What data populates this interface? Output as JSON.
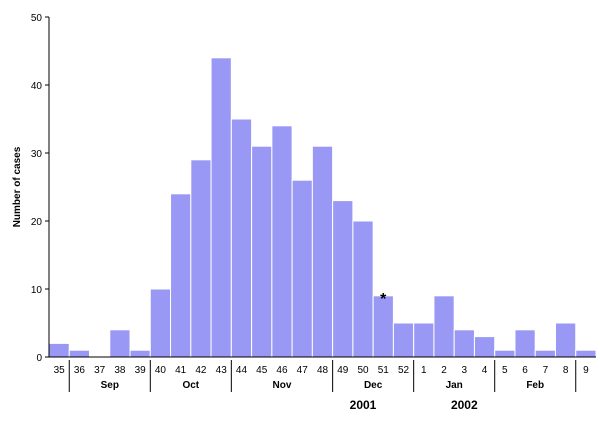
{
  "chart_data": {
    "type": "bar",
    "title": "",
    "xlabel": "",
    "ylabel": "Number of cases",
    "ylim": [
      0,
      50
    ],
    "yticks": [
      0,
      10,
      20,
      30,
      40,
      50
    ],
    "bar_color": "#9999f5",
    "bar_edge_color": "#ffffff",
    "grid": false,
    "categories": [
      "35",
      "36",
      "37",
      "38",
      "39",
      "40",
      "41",
      "42",
      "43",
      "44",
      "45",
      "46",
      "47",
      "48",
      "49",
      "50",
      "51",
      "52",
      "1",
      "2",
      "3",
      "4",
      "5",
      "6",
      "7",
      "8",
      "9"
    ],
    "values": [
      2,
      1,
      0,
      4,
      1,
      10,
      24,
      29,
      44,
      35,
      31,
      34,
      26,
      31,
      23,
      20,
      9,
      5,
      5,
      9,
      4,
      3,
      1,
      4,
      1,
      5,
      1
    ],
    "months": [
      {
        "label": "Sep",
        "start": 1,
        "end": 5
      },
      {
        "label": "Oct",
        "start": 5,
        "end": 9
      },
      {
        "label": "Nov",
        "start": 9,
        "end": 14
      },
      {
        "label": "Dec",
        "start": 14,
        "end": 18
      },
      {
        "label": "Jan",
        "start": 18,
        "end": 22
      },
      {
        "label": "Feb",
        "start": 22,
        "end": 26
      }
    ],
    "years": [
      {
        "label": "2001",
        "center_week": "50"
      },
      {
        "label": "2002",
        "center_week": "3"
      }
    ],
    "annotations": [
      {
        "text": "*",
        "week": "51"
      }
    ]
  }
}
